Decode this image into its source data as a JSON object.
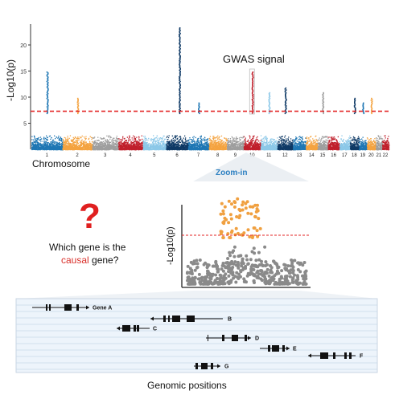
{
  "manhattan": {
    "ylabel": "-Log10(p)",
    "xlabel": "Chromosome",
    "annotation": "GWAS signal",
    "threshold_color": "#e32626"
  },
  "zoom": {
    "label": "Zoom-in",
    "ylabel": "-Log10(p)"
  },
  "question": {
    "mark": "?",
    "line1": "Which gene is the",
    "causal": "causal",
    "line2_rest": " gene?"
  },
  "genes": {
    "xlabel": "Genomic positions",
    "names": [
      "Gene A",
      "B",
      "C",
      "D",
      "E",
      "F",
      "G"
    ]
  },
  "chart_data": {
    "type": "scatter",
    "ylabel": "-Log10(p)",
    "xlabel": "Chromosome",
    "x_ticks": [
      "1",
      "2",
      "3",
      "4",
      "5",
      "6",
      "7",
      "8",
      "9",
      "10",
      "11",
      "12",
      "13",
      "14",
      "15",
      "16",
      "17",
      "18",
      "19",
      "20",
      "21",
      "22"
    ],
    "y_ticks": [
      5,
      10,
      15,
      20
    ],
    "ylim": [
      0,
      24
    ],
    "significance_threshold": 7.3,
    "peak_chromosome": "6",
    "peak_value": 23.5,
    "highlighted_chromosome": "10"
  },
  "colors": {
    "blue": "#1f77b4",
    "orange": "#f4a340",
    "grey": "#9e9e9e",
    "red": "#c0202c",
    "light_blue": "#8cc8e8",
    "navy": "#0f3a66",
    "zoom_orange": "#f0a040",
    "zoom_grey": "#8a8a8a"
  }
}
